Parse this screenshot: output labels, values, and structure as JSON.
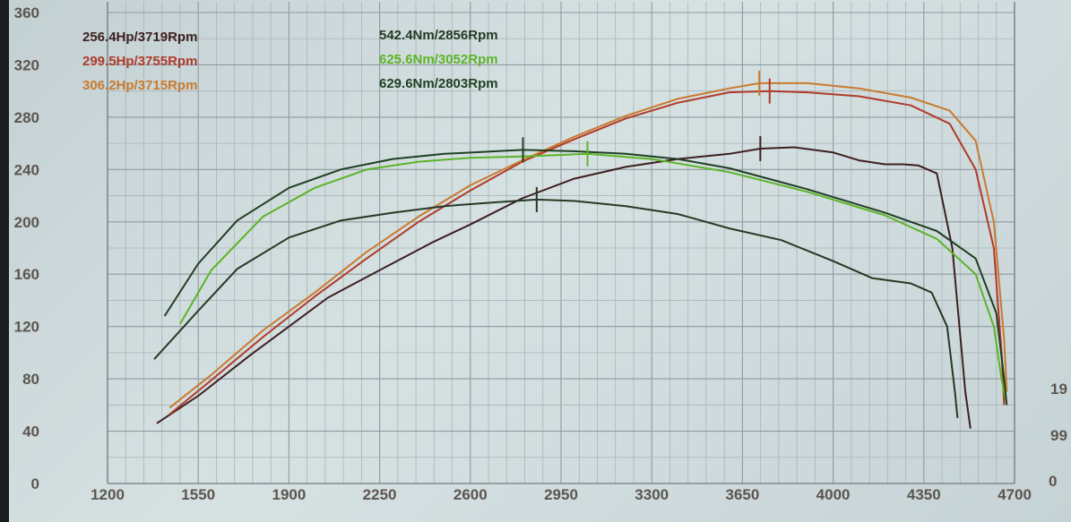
{
  "chart_data": {
    "type": "line",
    "title": "",
    "xlabel": "",
    "ylabel": "",
    "xlim": [
      1200,
      4700
    ],
    "ylim": [
      0,
      360
    ],
    "x_ticks": [
      "1200",
      "1550",
      "1900",
      "2250",
      "2600",
      "2950",
      "3300",
      "3650",
      "4000",
      "4350",
      "4700"
    ],
    "y_ticks": [
      "0",
      "40",
      "80",
      "120",
      "160",
      "200",
      "240",
      "280",
      "320",
      "360"
    ],
    "y_tick_labels": [
      "0",
      "40",
      "80",
      "120",
      "160",
      "200",
      "240",
      "280",
      "320",
      "360"
    ],
    "right_axis_labels": [
      "0",
      "99",
      "19"
    ],
    "grid": true,
    "legend_hp": [
      "256.4Hp/3719Rpm",
      "299.5Hp/3755Rpm",
      "306.2Hp/3715Rpm"
    ],
    "legend_nm": [
      "542.4Nm/2856Rpm",
      "625.6Nm/3052Rpm",
      "629.6Nm/2803Rpm"
    ],
    "series": [
      {
        "name": "256.4Hp/3719Rpm",
        "kind": "power",
        "color": "#3e1f1f",
        "x": [
          1390,
          1550,
          1750,
          1900,
          2050,
          2250,
          2450,
          2600,
          2800,
          3000,
          3200,
          3400,
          3600,
          3719,
          3850,
          4000,
          4100,
          4200,
          4270,
          4330,
          4400,
          4460,
          4510,
          4530
        ],
        "y": [
          46,
          67,
          98,
          120,
          142,
          163,
          184,
          198,
          218,
          233,
          242,
          248,
          252,
          256,
          257,
          253,
          247,
          244,
          244,
          243,
          237,
          180,
          70,
          42
        ],
        "peak_x": 3719
      },
      {
        "name": "299.5Hp/3755Rpm",
        "kind": "power",
        "color": "#b03a2a",
        "x": [
          1440,
          1600,
          1800,
          2000,
          2200,
          2400,
          2600,
          2800,
          3000,
          3200,
          3400,
          3600,
          3755,
          3900,
          4100,
          4300,
          4450,
          4550,
          4620,
          4650,
          4660
        ],
        "y": [
          53,
          79,
          112,
          143,
          172,
          200,
          224,
          246,
          263,
          279,
          291,
          299,
          300,
          299,
          296,
          289,
          275,
          240,
          180,
          100,
          60
        ],
        "peak_x": 3755
      },
      {
        "name": "306.2Hp/3715Rpm",
        "kind": "power",
        "color": "#c97a2e",
        "x": [
          1440,
          1600,
          1800,
          2000,
          2200,
          2400,
          2600,
          2800,
          3000,
          3200,
          3400,
          3600,
          3715,
          3900,
          4100,
          4300,
          4450,
          4550,
          4620,
          4660,
          4670
        ],
        "y": [
          58,
          83,
          117,
          146,
          177,
          204,
          228,
          247,
          265,
          281,
          294,
          302,
          306,
          306,
          302,
          295,
          285,
          262,
          200,
          110,
          70
        ],
        "peak_x": 3715
      },
      {
        "name": "542.4Nm/2856Rpm",
        "kind": "torque",
        "color": "#243a24",
        "x": [
          1380,
          1550,
          1700,
          1900,
          2100,
          2300,
          2500,
          2700,
          2856,
          3000,
          3200,
          3400,
          3600,
          3800,
          4000,
          4150,
          4300,
          4380,
          4440,
          4470,
          4480
        ],
        "y": [
          95,
          132,
          164,
          188,
          201,
          207,
          212,
          215,
          217,
          216,
          212,
          206,
          195,
          186,
          170,
          157,
          153,
          146,
          120,
          70,
          50
        ],
        "peak_x": 2856
      },
      {
        "name": "625.6Nm/3052Rpm",
        "kind": "torque",
        "color": "#5cb428",
        "x": [
          1480,
          1600,
          1800,
          2000,
          2200,
          2400,
          2600,
          2800,
          3052,
          3300,
          3600,
          3900,
          4200,
          4400,
          4550,
          4620,
          4650,
          4670
        ],
        "y": [
          122,
          163,
          204,
          226,
          240,
          246,
          249,
          250,
          252,
          248,
          238,
          223,
          205,
          187,
          160,
          120,
          80,
          60
        ],
        "peak_x": 3052
      },
      {
        "name": "629.6Nm/2803Rpm",
        "kind": "torque",
        "color": "#1f3f22",
        "x": [
          1420,
          1550,
          1700,
          1900,
          2100,
          2300,
          2500,
          2700,
          2803,
          3000,
          3200,
          3400,
          3600,
          3900,
          4200,
          4400,
          4550,
          4630,
          4660,
          4670
        ],
        "y": [
          128,
          168,
          201,
          226,
          240,
          248,
          252,
          254,
          255,
          254,
          252,
          248,
          241,
          225,
          207,
          193,
          172,
          130,
          80,
          60
        ],
        "peak_x": 2803
      }
    ]
  }
}
